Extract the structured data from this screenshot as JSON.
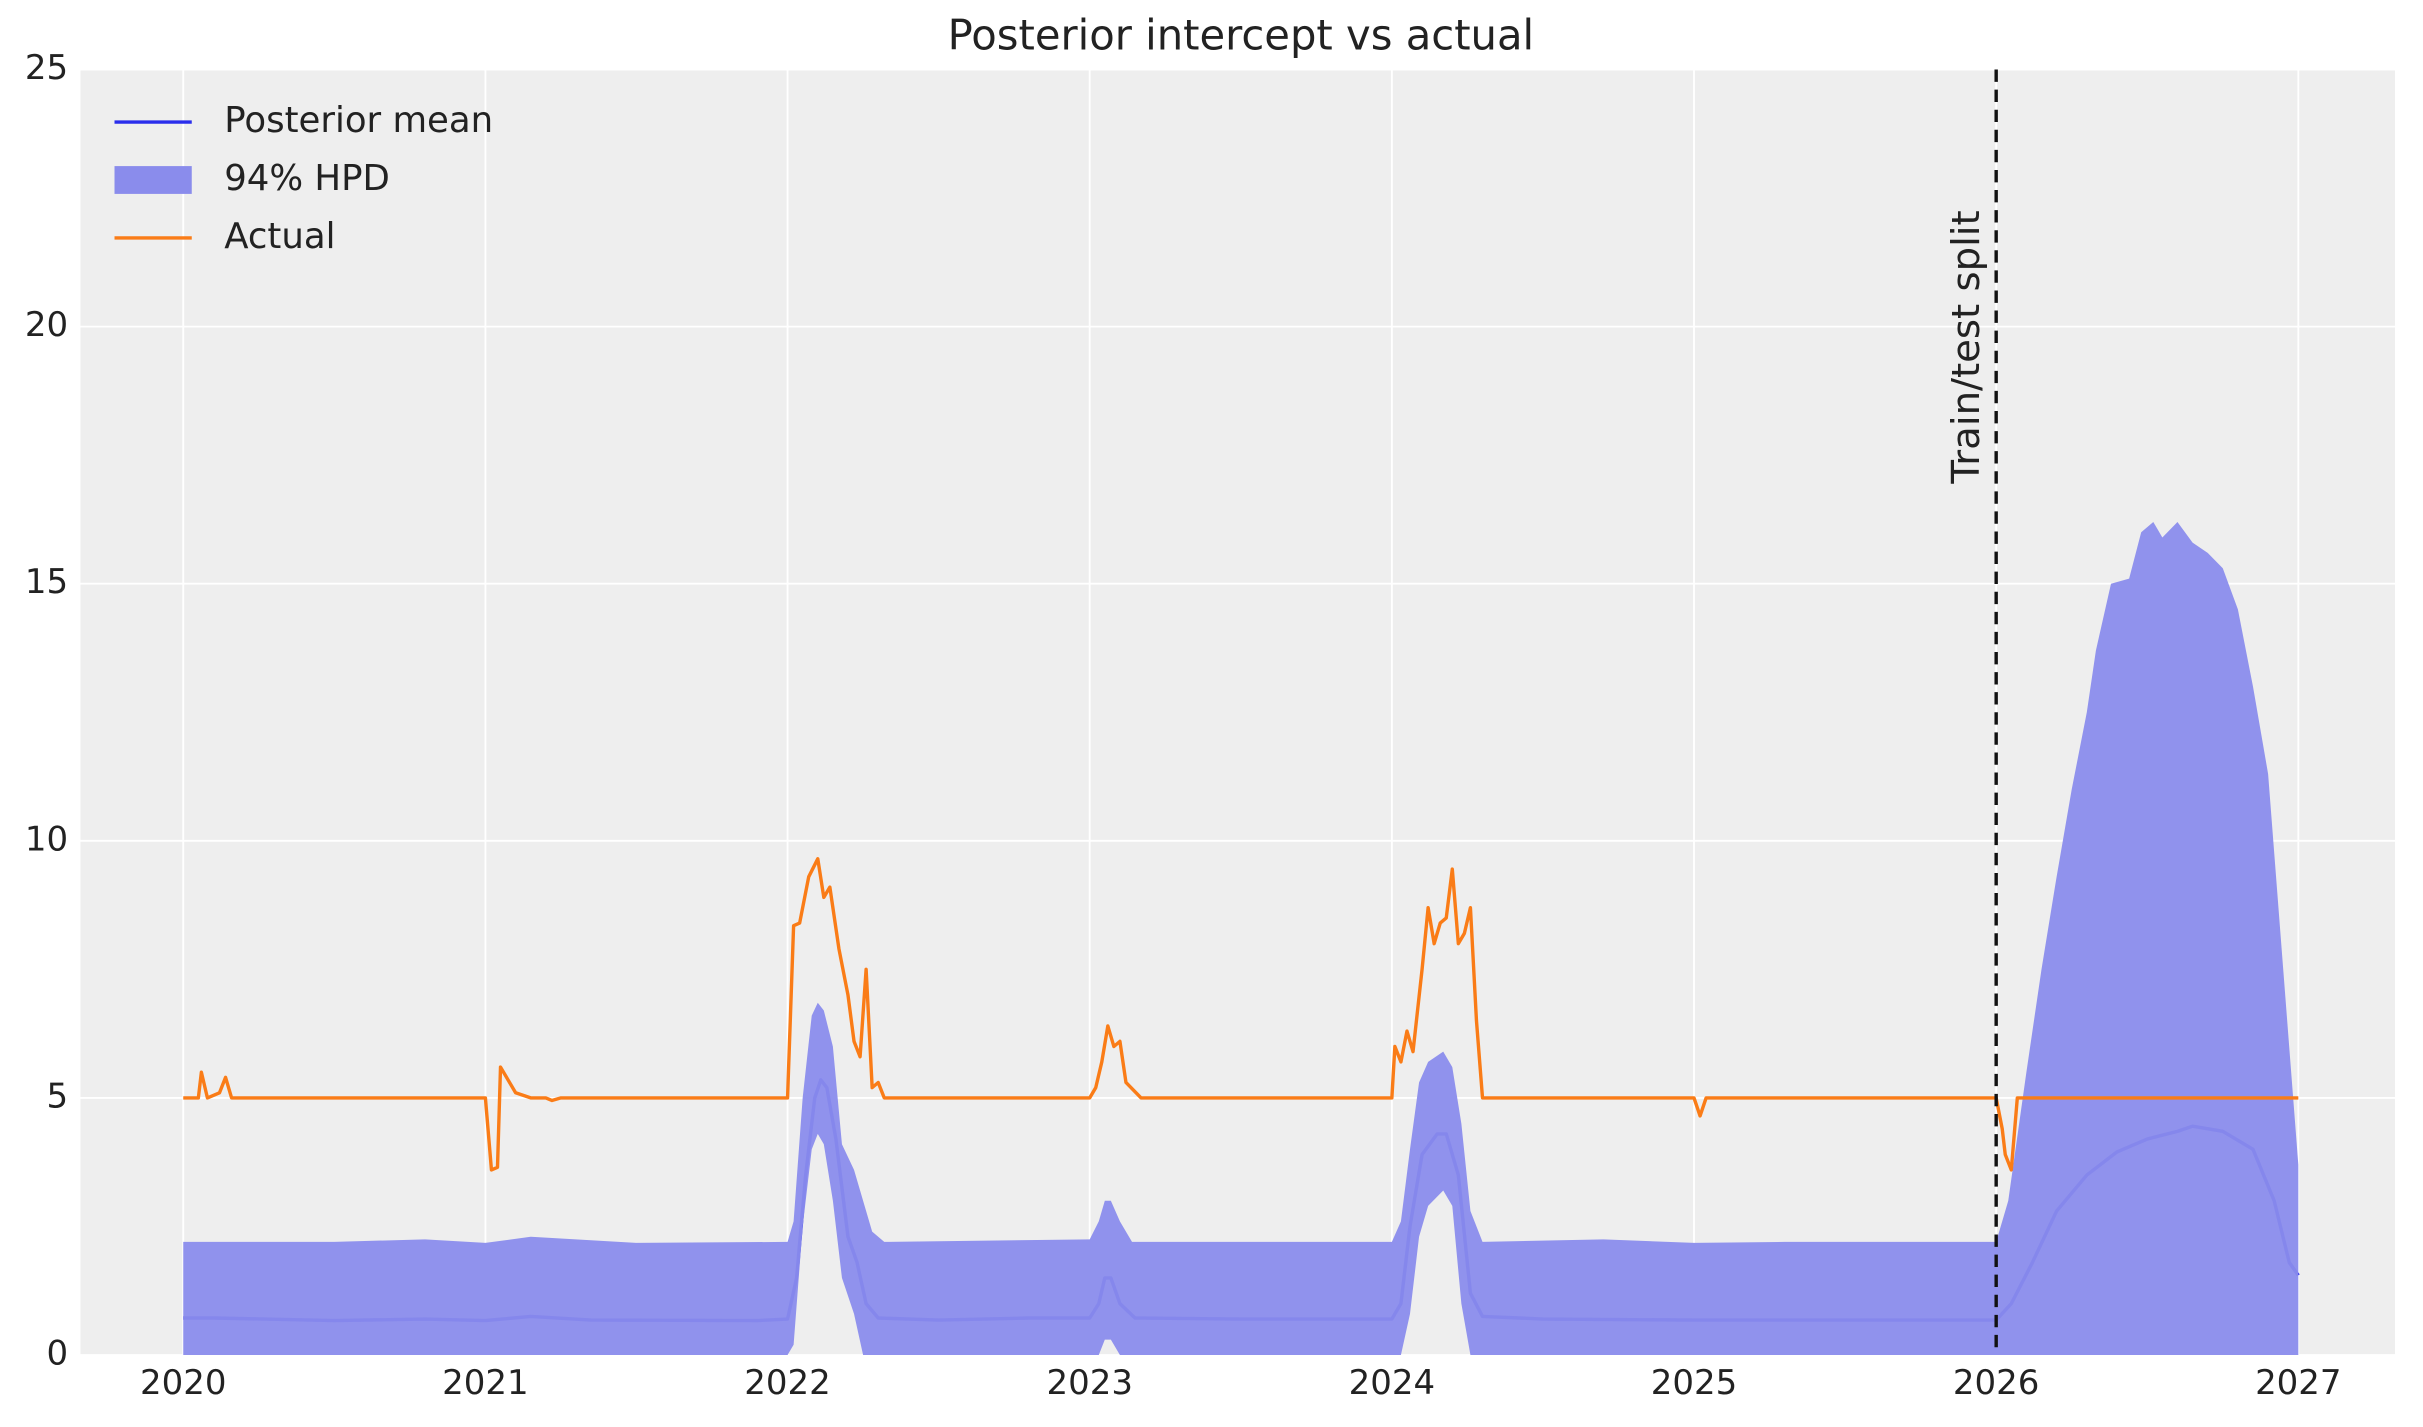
{
  "chart_data": {
    "type": "line",
    "title": "Posterior intercept vs actual",
    "xlim": [
      2019.66,
      2027.32
    ],
    "xticks": [
      2020,
      2021,
      2022,
      2023,
      2024,
      2025,
      2026,
      2027
    ],
    "ylim": [
      0,
      25
    ],
    "yticks": [
      0,
      5,
      10,
      15,
      20,
      25
    ],
    "grid": true,
    "legend": "upper left",
    "series": [
      {
        "name": "Posterior mean",
        "color": "#2a2eec",
        "kind": "line",
        "x": [
          2020,
          2020.1,
          2020.5,
          2020.8,
          2021,
          2021.15,
          2021.35,
          2021.9,
          2022.0,
          2022.03,
          2022.06,
          2022.09,
          2022.11,
          2022.13,
          2022.16,
          2022.2,
          2022.23,
          2022.26,
          2022.3,
          2022.5,
          2022.8,
          2023.0,
          2023.03,
          2023.05,
          2023.07,
          2023.1,
          2023.15,
          2023.5,
          2024.0,
          2024.03,
          2024.06,
          2024.1,
          2024.15,
          2024.18,
          2024.22,
          2024.26,
          2024.3,
          2024.5,
          2025.0,
          2025.5,
          2026.0,
          2026.05,
          2026.12,
          2026.2,
          2026.3,
          2026.4,
          2026.5,
          2026.6,
          2026.65,
          2026.75,
          2026.85,
          2026.92,
          2026.97,
          2027.0
        ],
        "values": [
          0.72,
          0.72,
          0.67,
          0.7,
          0.67,
          0.75,
          0.68,
          0.67,
          0.7,
          1.5,
          3.5,
          5.0,
          5.35,
          5.2,
          4.2,
          2.3,
          1.8,
          1.0,
          0.72,
          0.68,
          0.72,
          0.72,
          1.0,
          1.5,
          1.5,
          1.0,
          0.72,
          0.7,
          0.7,
          1.0,
          2.5,
          3.9,
          4.3,
          4.3,
          3.5,
          1.2,
          0.75,
          0.7,
          0.68,
          0.68,
          0.68,
          1.0,
          1.8,
          2.8,
          3.5,
          3.95,
          4.2,
          4.35,
          4.45,
          4.35,
          4.0,
          3.0,
          1.8,
          1.55
        ]
      },
      {
        "name": "94% HPD",
        "color": "#8a8cec",
        "kind": "band",
        "x": [
          2020,
          2020.5,
          2020.8,
          2021,
          2021.15,
          2021.5,
          2022.0,
          2022.02,
          2022.05,
          2022.08,
          2022.1,
          2022.12,
          2022.15,
          2022.18,
          2022.22,
          2022.25,
          2022.28,
          2022.32,
          2023.0,
          2023.03,
          2023.05,
          2023.07,
          2023.1,
          2023.14,
          2023.5,
          2024.0,
          2024.03,
          2024.06,
          2024.09,
          2024.12,
          2024.17,
          2024.2,
          2024.23,
          2024.26,
          2024.3,
          2024.7,
          2025.0,
          2025.3,
          2026.0,
          2026.04,
          2026.1,
          2026.15,
          2026.2,
          2026.25,
          2026.3,
          2026.33,
          2026.38,
          2026.44,
          2026.48,
          2026.52,
          2026.55,
          2026.6,
          2026.65,
          2026.7,
          2026.75,
          2026.8,
          2026.85,
          2026.9,
          2026.95,
          2027.0
        ],
        "lower": [
          0,
          0,
          0,
          0,
          0,
          0,
          0,
          0.2,
          2.5,
          4.0,
          4.3,
          4.1,
          3.0,
          1.5,
          0.8,
          0,
          0,
          0,
          0,
          0,
          0.3,
          0.3,
          0,
          0,
          0,
          0,
          0,
          0.8,
          2.3,
          2.9,
          3.2,
          2.9,
          1.0,
          0,
          0,
          0,
          0,
          0,
          0,
          0,
          0,
          0,
          0,
          0,
          0,
          0,
          0,
          0,
          0,
          0,
          0,
          0,
          0,
          0,
          0,
          0,
          0,
          0,
          0,
          0
        ],
        "upper": [
          2.2,
          2.2,
          2.25,
          2.18,
          2.3,
          2.18,
          2.2,
          2.6,
          5.0,
          6.6,
          6.85,
          6.7,
          6.0,
          4.1,
          3.6,
          3.0,
          2.4,
          2.2,
          2.25,
          2.6,
          3.0,
          3.0,
          2.6,
          2.2,
          2.2,
          2.2,
          2.6,
          4.0,
          5.3,
          5.7,
          5.9,
          5.6,
          4.5,
          2.8,
          2.2,
          2.25,
          2.18,
          2.2,
          2.2,
          3.0,
          5.5,
          7.5,
          9.3,
          11,
          12.5,
          13.7,
          15.0,
          15.1,
          16.0,
          16.2,
          15.9,
          16.2,
          15.8,
          15.6,
          15.3,
          14.5,
          13.0,
          11.3,
          7.5,
          3.7
        ]
      },
      {
        "name": "Actual",
        "color": "#fa7c17",
        "kind": "line",
        "x": [
          2020.0,
          2020.05,
          2020.06,
          2020.08,
          2020.12,
          2020.14,
          2020.16,
          2021.0,
          2021.02,
          2021.04,
          2021.05,
          2021.1,
          2021.15,
          2021.2,
          2021.22,
          2021.25,
          2022.0,
          2022.02,
          2022.04,
          2022.07,
          2022.1,
          2022.12,
          2022.14,
          2022.17,
          2022.2,
          2022.22,
          2022.24,
          2022.26,
          2022.28,
          2022.3,
          2022.32,
          2023.0,
          2023.02,
          2023.04,
          2023.06,
          2023.08,
          2023.1,
          2023.12,
          2023.17,
          2024.0,
          2024.01,
          2024.03,
          2024.05,
          2024.07,
          2024.1,
          2024.12,
          2024.14,
          2024.16,
          2024.18,
          2024.2,
          2024.22,
          2024.24,
          2024.26,
          2024.28,
          2024.3,
          2025.0,
          2025.02,
          2025.04,
          2026.0,
          2026.02,
          2026.03,
          2026.05,
          2026.07,
          2027.0
        ],
        "values": [
          5,
          5,
          5.5,
          5,
          5.1,
          5.4,
          5,
          5,
          3.6,
          3.65,
          5.6,
          5.1,
          5,
          5,
          4.95,
          5,
          5,
          8.35,
          8.4,
          9.3,
          9.65,
          8.9,
          9.1,
          7.9,
          7,
          6.1,
          5.8,
          7.5,
          5.2,
          5.3,
          5,
          5,
          5.2,
          5.7,
          6.4,
          6,
          6.1,
          5.3,
          5,
          5,
          6,
          5.7,
          6.3,
          5.9,
          7.5,
          8.7,
          8.0,
          8.4,
          8.5,
          9.45,
          8.0,
          8.2,
          8.7,
          6.5,
          5,
          5,
          4.65,
          5,
          5,
          4.4,
          3.9,
          3.6,
          5,
          5
        ]
      }
    ],
    "vline": {
      "x": 2026.0,
      "label": "Train/test split"
    }
  }
}
